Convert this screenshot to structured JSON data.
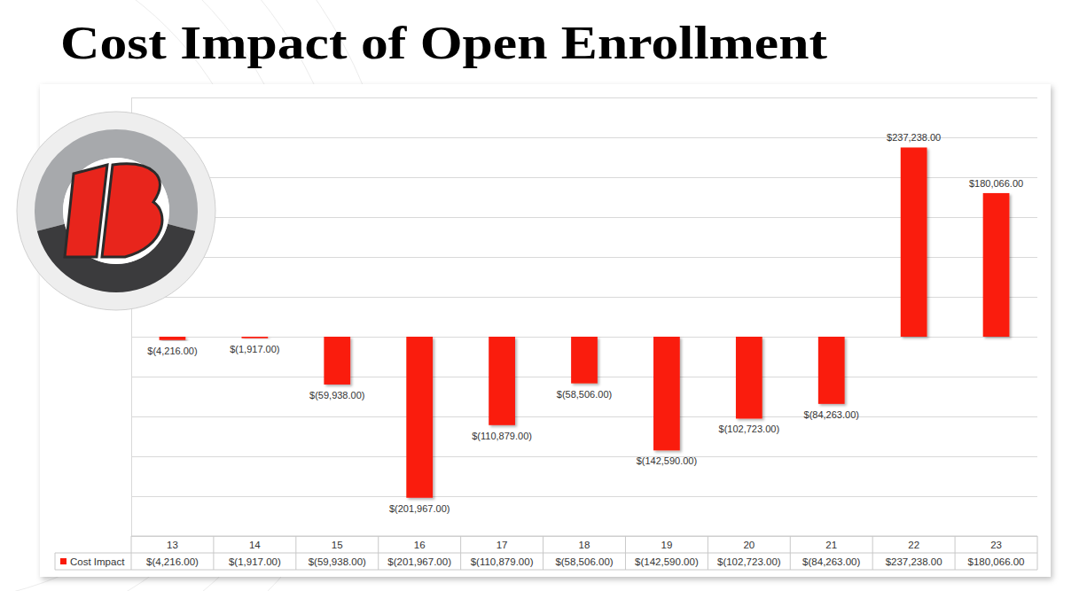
{
  "chart_data": {
    "type": "bar",
    "title": "Cost Impact of Open Enrollment",
    "categories": [
      "13",
      "14",
      "15",
      "16",
      "17",
      "18",
      "19",
      "20",
      "21",
      "22",
      "23"
    ],
    "series": [
      {
        "name": "Cost Impact",
        "color": "#fa1a0a",
        "values": [
          -4216,
          -1917,
          -59938,
          -201967,
          -110879,
          -58506,
          -142590,
          -102723,
          -84263,
          237238,
          180066
        ],
        "value_labels": [
          "$(4,216.00)",
          "$(1,917.00)",
          "$(59,938.00)",
          "$(201,967.00)",
          "$(110,879.00)",
          "$(58,506.00)",
          "$(142,590.00)",
          "$(102,723.00)",
          "$(84,263.00)",
          "$237,238.00",
          "$180,066.00"
        ]
      }
    ],
    "ylim": [
      -250000,
      300000
    ],
    "yticks": [
      -250000,
      -200000,
      -150000,
      -100000,
      -50000,
      0,
      50000,
      100000,
      150000,
      200000,
      250000,
      300000
    ],
    "grid": true,
    "data_labels": true,
    "tick_labels": "x",
    "legend": "bottom"
  }
}
